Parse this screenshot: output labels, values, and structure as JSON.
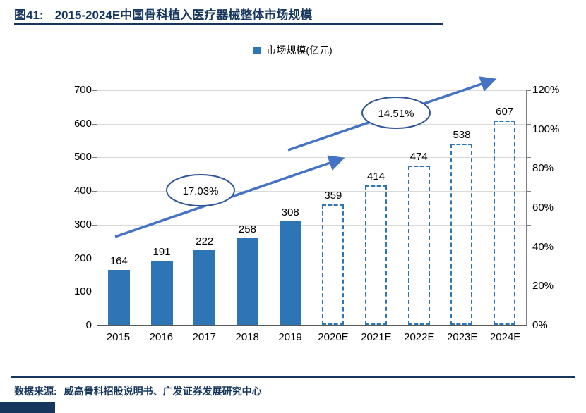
{
  "header": {
    "prefix": "图41:",
    "title": "2015-2024E中国骨科植入医疗器械整体市场规模"
  },
  "legend": {
    "label": "市场规模(亿元)"
  },
  "footer": {
    "source_label": "数据来源:",
    "source_text": "威高骨科招股说明书、广发证券发展研究中心"
  },
  "colors": {
    "bar": "#2E75B6",
    "navy": "#17365D",
    "arrow": "#4472C4",
    "ellipse_stroke": "#2F5597",
    "gridline": "#D9D9D9"
  },
  "chart_data": {
    "type": "bar",
    "title": "2015-2024E中国骨科植入医疗器械整体市场规模",
    "legend": [
      "市场规模(亿元)"
    ],
    "legend_position": "top",
    "categories": [
      "2015",
      "2016",
      "2017",
      "2018",
      "2019",
      "2020E",
      "2021E",
      "2022E",
      "2023E",
      "2024E"
    ],
    "values": [
      164,
      191,
      222,
      258,
      308,
      359,
      414,
      474,
      538,
      607
    ],
    "bar_styles": [
      "solid",
      "solid",
      "solid",
      "solid",
      "solid",
      "dashed",
      "dashed",
      "dashed",
      "dashed",
      "dashed"
    ],
    "left_axis": {
      "min": 0,
      "max": 700,
      "step": 100,
      "ticks": [
        0,
        100,
        200,
        300,
        400,
        500,
        600,
        700
      ]
    },
    "right_axis": {
      "ticks": [
        "0%",
        "20%",
        "40%",
        "60%",
        "80%",
        "100%",
        "120%"
      ]
    },
    "grid": true,
    "annotations": [
      {
        "label": "17.03%"
      },
      {
        "label": "14.51%"
      }
    ]
  }
}
